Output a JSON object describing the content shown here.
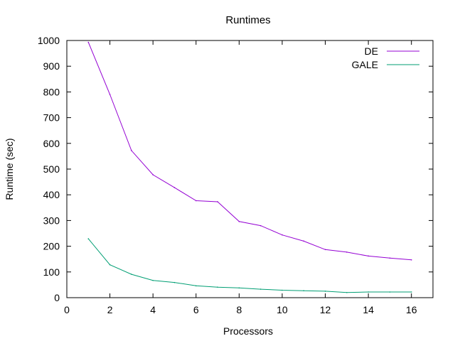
{
  "chart_data": {
    "type": "line",
    "title": "Runtimes",
    "xlabel": "Processors",
    "ylabel": "Runtime (sec)",
    "xlim": [
      0,
      17
    ],
    "ylim": [
      0,
      1000
    ],
    "x_ticks": [
      0,
      2,
      4,
      6,
      8,
      10,
      12,
      14,
      16
    ],
    "y_ticks": [
      0,
      100,
      200,
      300,
      400,
      500,
      600,
      700,
      800,
      900,
      1000
    ],
    "grid": false,
    "legend_position": "top-right",
    "x": [
      1,
      2,
      3,
      4,
      5,
      6,
      7,
      8,
      9,
      10,
      11,
      12,
      13,
      14,
      15,
      16
    ],
    "series": [
      {
        "name": "DE",
        "color": "#9400d3",
        "values": [
          993,
          790,
          572,
          478,
          428,
          377,
          373,
          296,
          280,
          244,
          220,
          187,
          177,
          162,
          154,
          147
        ]
      },
      {
        "name": "GALE",
        "color": "#009e73",
        "values": [
          229,
          128,
          91,
          67,
          59,
          46,
          41,
          38,
          33,
          29,
          27,
          25,
          20,
          22,
          22,
          22
        ]
      }
    ]
  }
}
